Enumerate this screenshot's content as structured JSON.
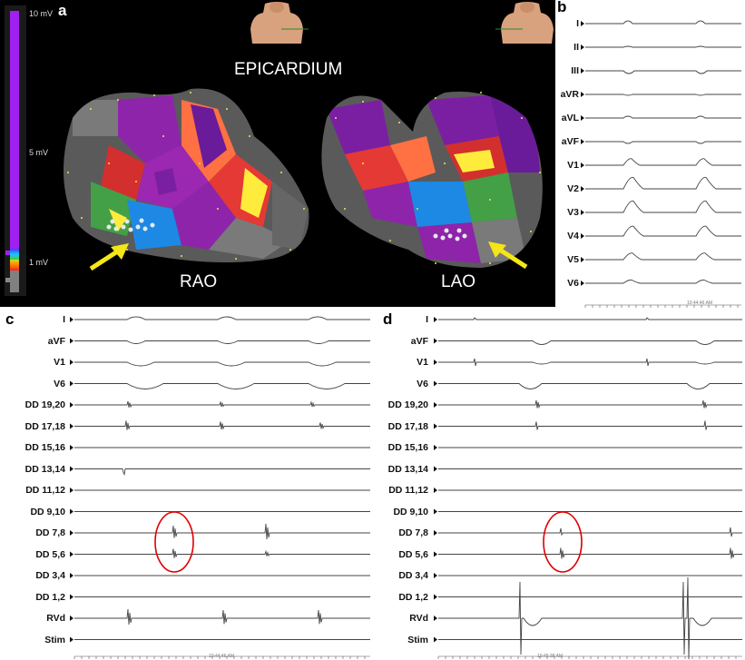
{
  "panel_a": {
    "letter": "a",
    "title": "EPICARDIUM",
    "colorbar": {
      "top_label": "10 mV",
      "mid_label": "5 mV",
      "low_label": "1 mV"
    },
    "views": [
      {
        "label": "RAO"
      },
      {
        "label": "LAO"
      }
    ],
    "arrow_color": "#f5e617",
    "map_colors": [
      "#7b1fa2",
      "#d32f2f",
      "#ffeb3b",
      "#43a047",
      "#1e88e5",
      "#9e9e9e"
    ]
  },
  "panel_b": {
    "letter": "b",
    "leads": [
      "I",
      "II",
      "III",
      "aVR",
      "aVL",
      "aVF",
      "V1",
      "V2",
      "V3",
      "V4",
      "V5",
      "V6"
    ],
    "timestamp": "10:44:46 AM"
  },
  "panel_c": {
    "letter": "c",
    "leads": [
      "I",
      "aVF",
      "V1",
      "V6",
      "DD 19,20",
      "DD 17,18",
      "DD 15,16",
      "DD 13,14",
      "DD 11,12",
      "DD 9,10",
      "DD 7,8",
      "DD 5,6",
      "DD 3,4",
      "DD 1,2",
      "RVd",
      "Stim"
    ],
    "timestamp": "10:44:46 AM",
    "highlight_color": "#e00000"
  },
  "panel_d": {
    "letter": "d",
    "leads": [
      "I",
      "aVF",
      "V1",
      "V6",
      "DD 19,20",
      "DD 17,18",
      "DD 15,16",
      "DD 13,14",
      "DD 11,12",
      "DD 9,10",
      "DD 7,8",
      "DD 5,6",
      "DD 3,4",
      "DD 1,2",
      "RVd",
      "Stim"
    ],
    "timestamp": "10:45:38 AM",
    "highlight_color": "#e00000"
  }
}
